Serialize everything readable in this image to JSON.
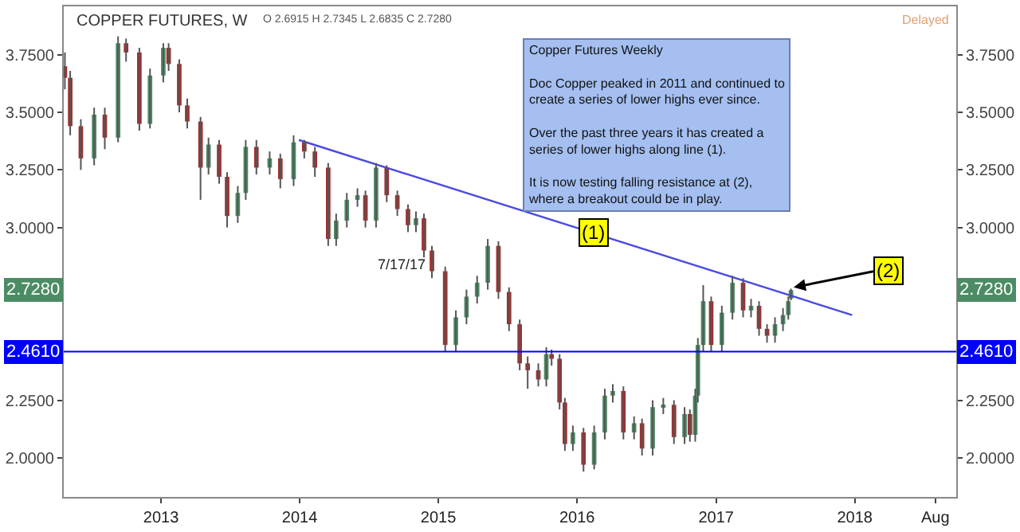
{
  "chart_data": {
    "type": "candlestick",
    "title": "COPPER FUTURES, W",
    "subtitle": "O 2.6915 H 2.7345 L 2.6835 C 2.7280",
    "x": [
      "2012-04-23",
      "2012-05-07",
      "2012-06-04",
      "2012-07-09",
      "2012-08-06",
      "2012-09-10",
      "2012-10-01",
      "2012-11-05",
      "2012-12-03",
      "2013-01-07",
      "2013-01-21",
      "2013-02-18",
      "2013-03-11",
      "2013-04-15",
      "2013-05-06",
      "2013-06-03",
      "2013-06-24",
      "2013-07-22",
      "2013-08-12",
      "2013-09-09",
      "2013-10-14",
      "2013-11-11",
      "2013-12-16",
      "2014-01-13",
      "2014-02-10",
      "2014-03-17",
      "2014-04-07",
      "2014-05-05",
      "2014-06-02",
      "2014-06-23",
      "2014-07-21",
      "2014-08-18",
      "2014-09-15",
      "2014-10-13",
      "2014-11-03",
      "2014-11-24",
      "2014-12-15",
      "2015-01-19",
      "2015-02-16",
      "2015-03-16",
      "2015-04-13",
      "2015-05-11",
      "2015-06-08",
      "2015-07-06",
      "2015-08-03",
      "2015-08-24",
      "2015-09-21",
      "2015-10-12",
      "2015-10-26",
      "2015-11-16",
      "2015-11-30",
      "2015-12-21",
      "2016-01-18",
      "2016-02-15",
      "2016-03-14",
      "2016-04-04",
      "2016-05-02",
      "2016-05-30",
      "2016-06-20",
      "2016-07-18",
      "2016-08-15",
      "2016-09-12",
      "2016-10-10",
      "2016-10-24",
      "2016-11-07",
      "2016-11-14",
      "2016-11-28",
      "2016-12-19",
      "2017-01-16",
      "2017-02-13",
      "2017-03-13",
      "2017-04-03",
      "2017-04-24",
      "2017-05-15",
      "2017-06-05",
      "2017-06-26",
      "2017-07-10",
      "2017-07-17"
    ],
    "ohlc": [
      [
        3.7,
        3.76,
        3.6,
        3.65
      ],
      [
        3.65,
        3.68,
        3.4,
        3.44
      ],
      [
        3.44,
        3.47,
        3.25,
        3.3
      ],
      [
        3.3,
        3.52,
        3.27,
        3.49
      ],
      [
        3.49,
        3.52,
        3.34,
        3.39
      ],
      [
        3.39,
        3.83,
        3.37,
        3.8
      ],
      [
        3.8,
        3.82,
        3.72,
        3.76
      ],
      [
        3.76,
        3.78,
        3.42,
        3.45
      ],
      [
        3.45,
        3.69,
        3.43,
        3.66
      ],
      [
        3.66,
        3.8,
        3.63,
        3.78
      ],
      [
        3.78,
        3.8,
        3.68,
        3.71
      ],
      [
        3.71,
        3.73,
        3.5,
        3.53
      ],
      [
        3.53,
        3.56,
        3.43,
        3.46
      ],
      [
        3.46,
        3.48,
        3.12,
        3.26
      ],
      [
        3.26,
        3.39,
        3.23,
        3.36
      ],
      [
        3.36,
        3.38,
        3.19,
        3.22
      ],
      [
        3.22,
        3.24,
        3.0,
        3.05
      ],
      [
        3.05,
        3.18,
        3.02,
        3.15
      ],
      [
        3.15,
        3.38,
        3.12,
        3.35
      ],
      [
        3.35,
        3.38,
        3.23,
        3.26
      ],
      [
        3.26,
        3.33,
        3.23,
        3.3
      ],
      [
        3.3,
        3.32,
        3.17,
        3.21
      ],
      [
        3.21,
        3.4,
        3.18,
        3.37
      ],
      [
        3.37,
        3.38,
        3.3,
        3.33
      ],
      [
        3.33,
        3.35,
        3.22,
        3.26
      ],
      [
        3.26,
        3.28,
        2.92,
        2.95
      ],
      [
        2.95,
        3.06,
        2.92,
        3.03
      ],
      [
        3.03,
        3.15,
        3.0,
        3.12
      ],
      [
        3.12,
        3.17,
        3.09,
        3.14
      ],
      [
        3.14,
        3.16,
        3.0,
        3.03
      ],
      [
        3.03,
        3.28,
        3.0,
        3.26
      ],
      [
        3.26,
        3.27,
        3.11,
        3.14
      ],
      [
        3.14,
        3.16,
        3.05,
        3.08
      ],
      [
        3.08,
        3.1,
        2.98,
        3.01
      ],
      [
        3.01,
        3.07,
        2.98,
        3.04
      ],
      [
        3.04,
        3.06,
        2.87,
        2.9
      ],
      [
        2.9,
        2.92,
        2.78,
        2.81
      ],
      [
        2.81,
        2.83,
        2.46,
        2.49
      ],
      [
        2.49,
        2.64,
        2.46,
        2.61
      ],
      [
        2.61,
        2.73,
        2.58,
        2.7
      ],
      [
        2.7,
        2.79,
        2.67,
        2.76
      ],
      [
        2.76,
        2.95,
        2.73,
        2.92
      ],
      [
        2.92,
        2.94,
        2.69,
        2.72
      ],
      [
        2.72,
        2.74,
        2.55,
        2.58
      ],
      [
        2.58,
        2.6,
        2.38,
        2.41
      ],
      [
        2.41,
        2.44,
        2.3,
        2.38
      ],
      [
        2.38,
        2.41,
        2.31,
        2.34
      ],
      [
        2.34,
        2.48,
        2.31,
        2.45
      ],
      [
        2.45,
        2.47,
        2.4,
        2.43
      ],
      [
        2.43,
        2.45,
        2.21,
        2.24
      ],
      [
        2.24,
        2.26,
        2.03,
        2.06
      ],
      [
        2.06,
        2.14,
        2.03,
        2.11
      ],
      [
        2.11,
        2.13,
        1.94,
        1.97
      ],
      [
        1.97,
        2.14,
        1.95,
        2.11
      ],
      [
        2.11,
        2.3,
        2.08,
        2.27
      ],
      [
        2.27,
        2.32,
        2.24,
        2.29
      ],
      [
        2.29,
        2.31,
        2.08,
        2.11
      ],
      [
        2.11,
        2.18,
        2.08,
        2.15
      ],
      [
        2.15,
        2.17,
        2.01,
        2.04
      ],
      [
        2.04,
        2.25,
        2.01,
        2.22
      ],
      [
        2.22,
        2.26,
        2.19,
        2.23
      ],
      [
        2.23,
        2.25,
        2.06,
        2.09
      ],
      [
        2.09,
        2.22,
        2.06,
        2.19
      ],
      [
        2.19,
        2.21,
        2.07,
        2.1
      ],
      [
        2.1,
        2.3,
        2.07,
        2.27
      ],
      [
        2.27,
        2.52,
        2.24,
        2.49
      ],
      [
        2.49,
        2.75,
        2.46,
        2.68
      ],
      [
        2.68,
        2.7,
        2.46,
        2.49
      ],
      [
        2.49,
        2.66,
        2.46,
        2.63
      ],
      [
        2.63,
        2.79,
        2.6,
        2.76
      ],
      [
        2.76,
        2.78,
        2.61,
        2.64
      ],
      [
        2.64,
        2.69,
        2.61,
        2.66
      ],
      [
        2.66,
        2.68,
        2.53,
        2.56
      ],
      [
        2.56,
        2.58,
        2.5,
        2.53
      ],
      [
        2.53,
        2.61,
        2.5,
        2.58
      ],
      [
        2.58,
        2.65,
        2.55,
        2.62
      ],
      [
        2.62,
        2.7,
        2.6,
        2.68
      ],
      [
        2.6915,
        2.7345,
        2.6835,
        2.728
      ]
    ],
    "colors": [
      "#a03030",
      "#a03030",
      "#a03030",
      "#4c8c64",
      "#a03030",
      "#4c8c64",
      "#a03030",
      "#a03030",
      "#4c8c64",
      "#4c8c64",
      "#a03030",
      "#a03030",
      "#a03030",
      "#a03030",
      "#4c8c64",
      "#a03030",
      "#a03030",
      "#4c8c64",
      "#4c8c64",
      "#a03030",
      "#4c8c64",
      "#a03030",
      "#4c8c64",
      "#a03030",
      "#a03030",
      "#a03030",
      "#4c8c64",
      "#4c8c64",
      "#4c8c64",
      "#a03030",
      "#4c8c64",
      "#a03030",
      "#a03030",
      "#a03030",
      "#4c8c64",
      "#a03030",
      "#a03030",
      "#a03030",
      "#4c8c64",
      "#4c8c64",
      "#4c8c64",
      "#4c8c64",
      "#a03030",
      "#a03030",
      "#a03030",
      "#a03030",
      "#a03030",
      "#4c8c64",
      "#a03030",
      "#a03030",
      "#a03030",
      "#4c8c64",
      "#a03030",
      "#4c8c64",
      "#4c8c64",
      "#4c8c64",
      "#a03030",
      "#4c8c64",
      "#a03030",
      "#4c8c64",
      "#4c8c64",
      "#a03030",
      "#4c8c64",
      "#a03030",
      "#4c8c64",
      "#4c8c64",
      "#4c8c64",
      "#a03030",
      "#4c8c64",
      "#4c8c64",
      "#a03030",
      "#4c8c64",
      "#a03030",
      "#a03030",
      "#4c8c64",
      "#4c8c64",
      "#4c8c64",
      "#4c8c64"
    ],
    "series": [
      {
        "type": "line",
        "color": "#4a4adf",
        "x": [
          "2013-12-30",
          "2017-12-25"
        ],
        "values": [
          3.38,
          2.62
        ]
      }
    ],
    "ref_lines": [
      {
        "axis": "y",
        "value": 2.461,
        "label": "2.4610",
        "color": "#0000ff"
      }
    ],
    "annotations": [
      {
        "text": "(1)",
        "x": "2016-02-15",
        "y": 2.975
      },
      {
        "text": "(2)",
        "x": "2017-07-24",
        "y": 2.74
      },
      {
        "text": "2.7280",
        "y": 2.728
      },
      "Copper Futures Weekly\n\nDoc Copper peaked in 2011 and continued to\ncreate a series of lower highs ever since.\n\nOver the past three years it has created a\nseries of lower highs along line (1).\n\nIt is now testing falling resistance at (2),\nwhere a breakout could be in play.",
      "7/17/17",
      "Delayed"
    ],
    "xlim": [
      "2012-04-20",
      "2018-09-25"
    ],
    "xticks": [
      {
        "value": "2013-01-01",
        "label": "2013"
      },
      {
        "value": "2014-01-01",
        "label": "2014"
      },
      {
        "value": "2015-01-01",
        "label": "2015"
      },
      {
        "value": "2016-01-01",
        "label": "2016"
      },
      {
        "value": "2017-01-01",
        "label": "2017"
      },
      {
        "value": "2018-01-01",
        "label": "2018"
      },
      {
        "value": "2018-08-01",
        "label": "Aug"
      }
    ],
    "ylim": [
      1.83,
      3.96
    ],
    "yticks": [
      {
        "value": 2.0,
        "label": "2.0000"
      },
      {
        "value": 2.25,
        "label": "2.2500"
      },
      {
        "value": 2.5,
        "label": null
      },
      {
        "value": 3.0,
        "label": "3.0000"
      },
      {
        "value": 3.25,
        "label": "3.2500"
      },
      {
        "value": 3.5,
        "label": "3.5000"
      },
      {
        "value": 3.75,
        "label": "3.7500"
      }
    ],
    "y2lim": [
      1.83,
      3.96
    ],
    "y2ticks": [
      {
        "value": 2.0,
        "label": "2.0000"
      },
      {
        "value": 2.25,
        "label": "2.2500"
      },
      {
        "value": 2.5,
        "label": null
      },
      {
        "value": 3.0,
        "label": "3.0000"
      },
      {
        "value": 3.25,
        "label": "3.2500"
      },
      {
        "value": 3.5,
        "label": "3.5000"
      },
      {
        "value": 3.75,
        "label": "3.7500"
      }
    ],
    "tick_labels": "xy"
  }
}
